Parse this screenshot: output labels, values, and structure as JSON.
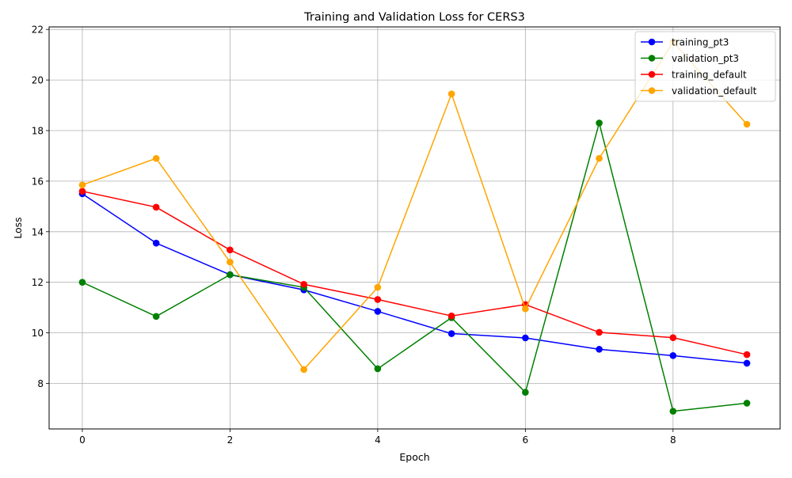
{
  "chart_data": {
    "type": "line",
    "title": "Training and Validation Loss for CERS3",
    "xlabel": "Epoch",
    "ylabel": "Loss",
    "xlim": [
      -0.45,
      9.45
    ],
    "ylim": [
      6.2,
      22.1
    ],
    "x_ticks": [
      0,
      2,
      4,
      6,
      8
    ],
    "y_ticks": [
      8,
      10,
      12,
      14,
      16,
      18,
      20,
      22
    ],
    "grid": true,
    "legend_position": "top-right",
    "x": [
      0,
      1,
      2,
      3,
      4,
      5,
      6,
      7,
      8,
      9
    ],
    "series": [
      {
        "name": "training_pt3",
        "color": "#0000ff",
        "values": [
          15.5,
          13.55,
          12.3,
          11.7,
          10.85,
          9.97,
          9.8,
          9.35,
          9.1,
          8.8
        ]
      },
      {
        "name": "validation_pt3",
        "color": "#008000",
        "values": [
          12.0,
          10.65,
          12.3,
          11.8,
          8.58,
          10.6,
          7.65,
          18.3,
          6.9,
          7.22
        ]
      },
      {
        "name": "training_default",
        "color": "#ff0000",
        "values": [
          15.6,
          14.97,
          13.28,
          11.92,
          11.32,
          10.67,
          11.12,
          10.02,
          9.81,
          9.14
        ]
      },
      {
        "name": "validation_default",
        "color": "#ffa500",
        "values": [
          15.85,
          16.9,
          12.8,
          8.55,
          11.8,
          19.45,
          10.95,
          16.9,
          21.5,
          18.25
        ]
      }
    ]
  }
}
